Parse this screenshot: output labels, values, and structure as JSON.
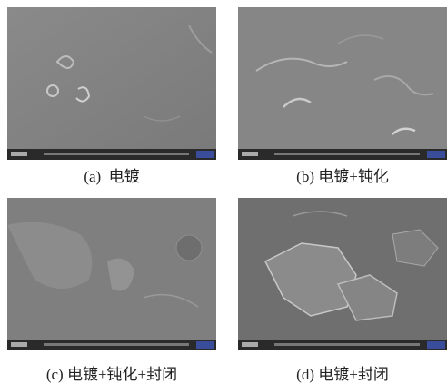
{
  "figure": {
    "panels": [
      {
        "caption": "(a)  电镀"
      },
      {
        "caption": "(b) 电镀+钝化"
      },
      {
        "caption": "(c) 电镀+钝化+封闭"
      },
      {
        "caption": "(d) 电镀+封闭"
      }
    ]
  }
}
